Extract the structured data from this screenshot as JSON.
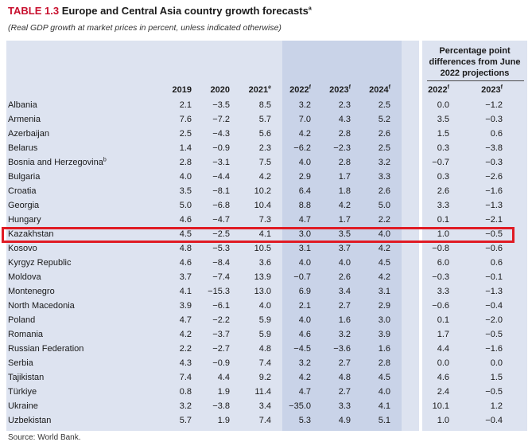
{
  "title": {
    "number": "TABLE 1.3",
    "text": "Europe and Central Asia country growth forecasts",
    "note_mark": "a"
  },
  "subtitle": "(Real GDP growth at market prices in percent, unless indicated otherwise)",
  "ppd_header": [
    "Percentage point",
    "differences from June",
    "2022 projections"
  ],
  "columns": [
    {
      "label": "2019",
      "sup": ""
    },
    {
      "label": "2020",
      "sup": ""
    },
    {
      "label": "2021",
      "sup": "e"
    },
    {
      "label": "2022",
      "sup": "f"
    },
    {
      "label": "2023",
      "sup": "f"
    },
    {
      "label": "2024",
      "sup": "f"
    },
    {
      "label": "2022",
      "sup": "f"
    },
    {
      "label": "2023",
      "sup": "f"
    }
  ],
  "rows": [
    {
      "country": "Albania",
      "sup": "",
      "values": [
        "2.1",
        "−3.5",
        "8.5",
        "3.2",
        "2.3",
        "2.5",
        "0.0",
        "−1.2"
      ]
    },
    {
      "country": "Armenia",
      "sup": "",
      "values": [
        "7.6",
        "−7.2",
        "5.7",
        "7.0",
        "4.3",
        "5.2",
        "3.5",
        "−0.3"
      ]
    },
    {
      "country": "Azerbaijan",
      "sup": "",
      "values": [
        "2.5",
        "−4.3",
        "5.6",
        "4.2",
        "2.8",
        "2.6",
        "1.5",
        "0.6"
      ]
    },
    {
      "country": "Belarus",
      "sup": "",
      "values": [
        "1.4",
        "−0.9",
        "2.3",
        "−6.2",
        "−2.3",
        "2.5",
        "0.3",
        "−3.8"
      ]
    },
    {
      "country": "Bosnia and Herzegovina",
      "sup": "b",
      "values": [
        "2.8",
        "−3.1",
        "7.5",
        "4.0",
        "2.8",
        "3.2",
        "−0.7",
        "−0.3"
      ]
    },
    {
      "country": "Bulgaria",
      "sup": "",
      "values": [
        "4.0",
        "−4.4",
        "4.2",
        "2.9",
        "1.7",
        "3.3",
        "0.3",
        "−2.6"
      ]
    },
    {
      "country": "Croatia",
      "sup": "",
      "values": [
        "3.5",
        "−8.1",
        "10.2",
        "6.4",
        "1.8",
        "2.6",
        "2.6",
        "−1.6"
      ]
    },
    {
      "country": "Georgia",
      "sup": "",
      "values": [
        "5.0",
        "−6.8",
        "10.4",
        "8.8",
        "4.2",
        "5.0",
        "3.3",
        "−1.3"
      ]
    },
    {
      "country": "Hungary",
      "sup": "",
      "values": [
        "4.6",
        "−4.7",
        "7.3",
        "4.7",
        "1.7",
        "2.2",
        "0.1",
        "−2.1"
      ]
    },
    {
      "country": "Kazakhstan",
      "sup": "",
      "values": [
        "4.5",
        "−2.5",
        "4.1",
        "3.0",
        "3.5",
        "4.0",
        "1.0",
        "−0.5"
      ]
    },
    {
      "country": "Kosovo",
      "sup": "",
      "values": [
        "4.8",
        "−5.3",
        "10.5",
        "3.1",
        "3.7",
        "4.2",
        "−0.8",
        "−0.6"
      ]
    },
    {
      "country": "Kyrgyz Republic",
      "sup": "",
      "values": [
        "4.6",
        "−8.4",
        "3.6",
        "4.0",
        "4.0",
        "4.5",
        "6.0",
        "0.6"
      ]
    },
    {
      "country": "Moldova",
      "sup": "",
      "values": [
        "3.7",
        "−7.4",
        "13.9",
        "−0.7",
        "2.6",
        "4.2",
        "−0.3",
        "−0.1"
      ]
    },
    {
      "country": "Montenegro",
      "sup": "",
      "values": [
        "4.1",
        "−15.3",
        "13.0",
        "6.9",
        "3.4",
        "3.1",
        "3.3",
        "−1.3"
      ]
    },
    {
      "country": "North Macedonia",
      "sup": "",
      "values": [
        "3.9",
        "−6.1",
        "4.0",
        "2.1",
        "2.7",
        "2.9",
        "−0.6",
        "−0.4"
      ]
    },
    {
      "country": "Poland",
      "sup": "",
      "values": [
        "4.7",
        "−2.2",
        "5.9",
        "4.0",
        "1.6",
        "3.0",
        "0.1",
        "−2.0"
      ]
    },
    {
      "country": "Romania",
      "sup": "",
      "values": [
        "4.2",
        "−3.7",
        "5.9",
        "4.6",
        "3.2",
        "3.9",
        "1.7",
        "−0.5"
      ]
    },
    {
      "country": "Russian Federation",
      "sup": "",
      "values": [
        "2.2",
        "−2.7",
        "4.8",
        "−4.5",
        "−3.6",
        "1.6",
        "4.4",
        "−1.6"
      ]
    },
    {
      "country": "Serbia",
      "sup": "",
      "values": [
        "4.3",
        "−0.9",
        "7.4",
        "3.2",
        "2.7",
        "2.8",
        "0.0",
        "0.0"
      ]
    },
    {
      "country": "Tajikistan",
      "sup": "",
      "values": [
        "7.4",
        "4.4",
        "9.2",
        "4.2",
        "4.8",
        "4.5",
        "4.6",
        "1.5"
      ]
    },
    {
      "country": "Türkiye",
      "sup": "",
      "values": [
        "0.8",
        "1.9",
        "11.4",
        "4.7",
        "2.7",
        "4.0",
        "2.4",
        "−0.5"
      ]
    },
    {
      "country": "Ukraine",
      "sup": "",
      "values": [
        "3.2",
        "−3.8",
        "3.4",
        "−35.0",
        "3.3",
        "4.1",
        "10.1",
        "1.2"
      ]
    },
    {
      "country": "Uzbekistan",
      "sup": "",
      "values": [
        "5.7",
        "1.9",
        "7.4",
        "5.3",
        "4.9",
        "5.1",
        "1.0",
        "−0.4"
      ]
    }
  ],
  "highlighted_country": "Kazakhstan",
  "source": "Source: World Bank."
}
